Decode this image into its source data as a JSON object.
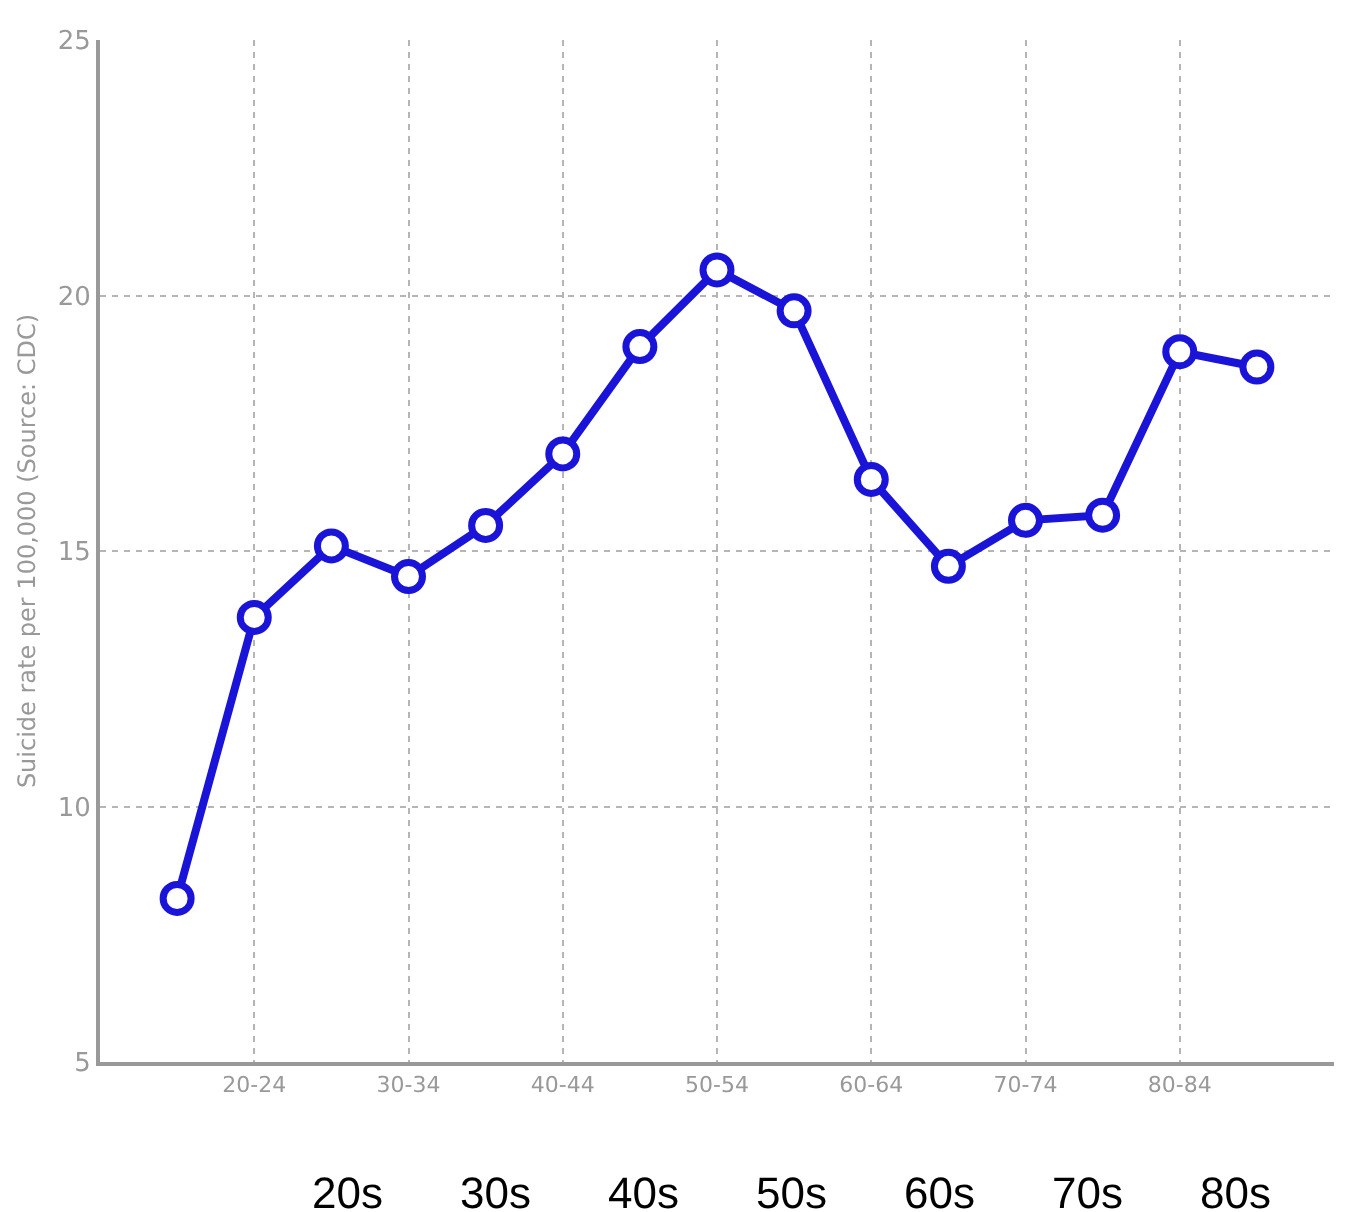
{
  "chart_data": {
    "type": "line",
    "ylabel": "Suicide rate per 100,000 (Source: CDC)",
    "categories": [
      null,
      "20-24",
      null,
      "30-34",
      null,
      "40-44",
      null,
      "50-54",
      null,
      "60-64",
      null,
      "70-74",
      null,
      "80-84",
      null
    ],
    "series": [
      {
        "color": "#1a14d8",
        "values": [
          8.2,
          13.7,
          15.1,
          14.5,
          15.5,
          16.9,
          19.0,
          20.5,
          19.7,
          16.4,
          14.7,
          15.6,
          15.7,
          18.9,
          18.6
        ]
      }
    ],
    "ylim": [
      5,
      25
    ],
    "yticks": [
      5,
      10,
      15,
      20,
      25
    ],
    "grid": true,
    "marker": "circle",
    "line_style": "solid",
    "annotations": [
      "20s",
      "30s",
      "40s",
      "50s",
      "60s",
      "70s",
      "80s"
    ]
  }
}
